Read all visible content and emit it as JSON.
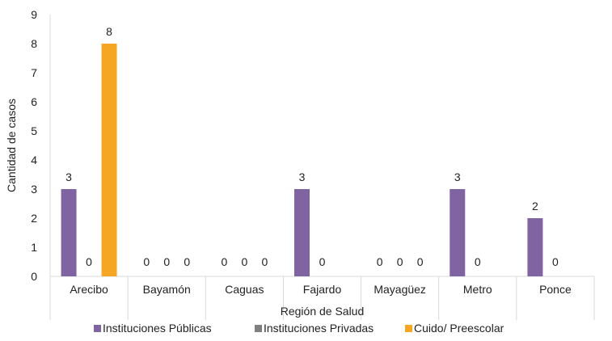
{
  "chart_data": {
    "type": "bar",
    "title": "",
    "xlabel": "Región de Salud",
    "ylabel": "Cantidad de casos",
    "ylim": [
      0,
      9
    ],
    "yticks": [
      0,
      1,
      2,
      3,
      4,
      5,
      6,
      7,
      8,
      9
    ],
    "grid": false,
    "legend": "bottom",
    "categories": [
      "Arecibo",
      "Bayamón",
      "Caguas",
      "Fajardo",
      "Mayagüez",
      "Metro",
      "Ponce"
    ],
    "series": [
      {
        "name": "Instituciones Públicas",
        "color": "#8064A2",
        "values": [
          3,
          0,
          0,
          3,
          0,
          3,
          2
        ],
        "labels": [
          "3",
          "0",
          "0",
          "3",
          "0",
          "3",
          "2"
        ]
      },
      {
        "name": "Instituciones Privadas",
        "color": "#7F7F7F",
        "values": [
          0,
          0,
          0,
          0,
          0,
          0,
          0
        ],
        "labels": [
          "0",
          "0",
          "0",
          "0",
          "0",
          "0",
          "0"
        ]
      },
      {
        "name": "Cuido/ Preescolar",
        "color": "#F5A623",
        "values": [
          8,
          0,
          0,
          null,
          0,
          null,
          null
        ],
        "labels": [
          "8",
          "0",
          "0",
          "",
          "0",
          "",
          ""
        ]
      }
    ]
  }
}
